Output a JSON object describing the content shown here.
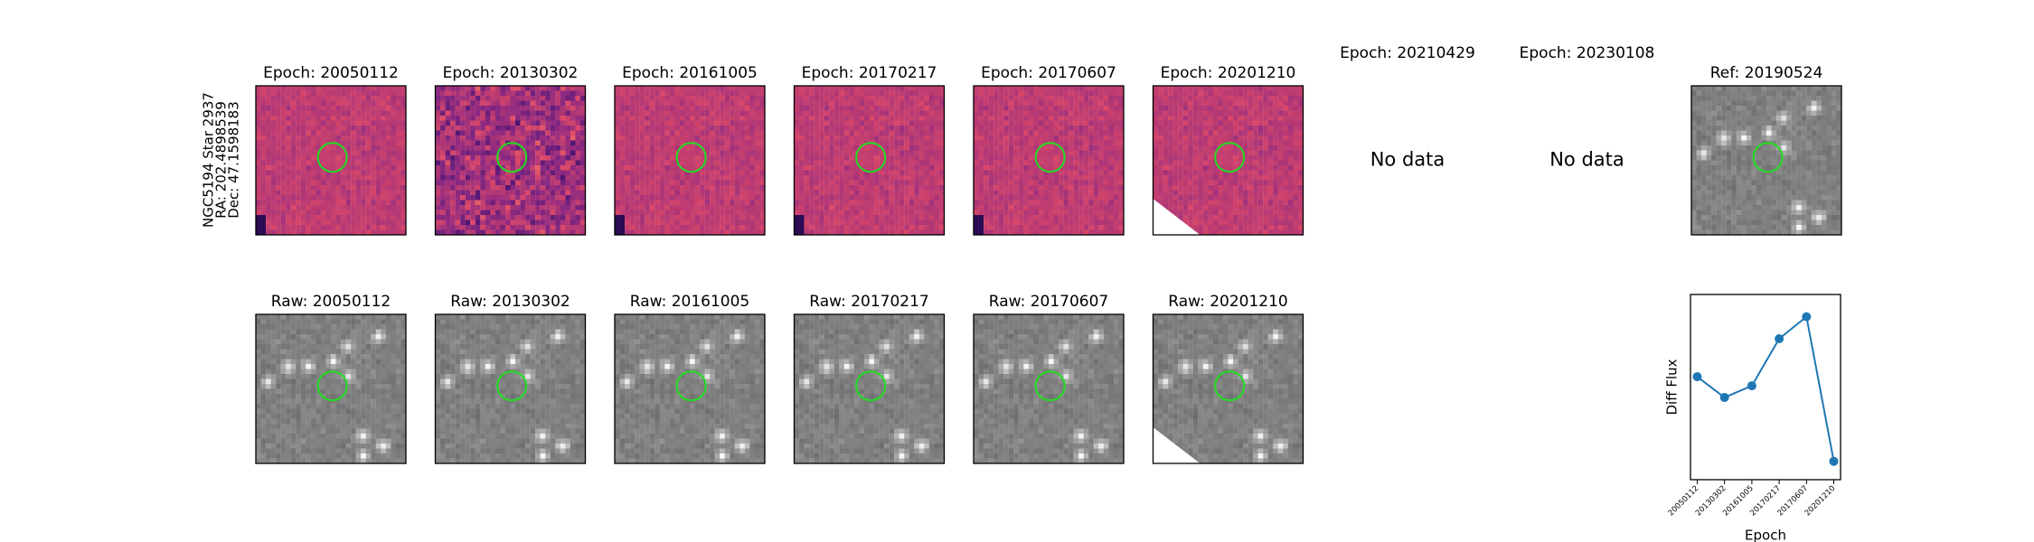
{
  "target": {
    "name": "NGC5194 Star 2937",
    "ra": "RA: 202.4898539",
    "dec": "Dec: 47.1598183"
  },
  "epoch_panels": [
    {
      "title": "Epoch: 20050112"
    },
    {
      "title": "Epoch: 20130302"
    },
    {
      "title": "Epoch: 20161005"
    },
    {
      "title": "Epoch: 20170217"
    },
    {
      "title": "Epoch: 20170607"
    },
    {
      "title": "Epoch: 20201210"
    },
    {
      "title": "Epoch: 20210429",
      "text": "No data"
    },
    {
      "title": "Epoch: 20230108",
      "text": "No data"
    }
  ],
  "ref_panel": {
    "title": "Ref: 20190524"
  },
  "raw_panels": [
    {
      "title": "Raw: 20050112"
    },
    {
      "title": "Raw: 20130302"
    },
    {
      "title": "Raw: 20161005"
    },
    {
      "title": "Raw: 20170217"
    },
    {
      "title": "Raw: 20170607"
    },
    {
      "title": "Raw: 20201210"
    }
  ],
  "chart_data": {
    "type": "line",
    "xlabel": "Epoch",
    "ylabel": "Diff Flux",
    "categories": [
      "20050112",
      "20130302",
      "20161005",
      "20170217",
      "20170607",
      "20201210"
    ],
    "values": [
      0.556,
      0.444,
      0.507,
      0.761,
      0.88,
      0.099
    ],
    "ylim": [
      0,
      1
    ],
    "color": "#1f77b4"
  }
}
